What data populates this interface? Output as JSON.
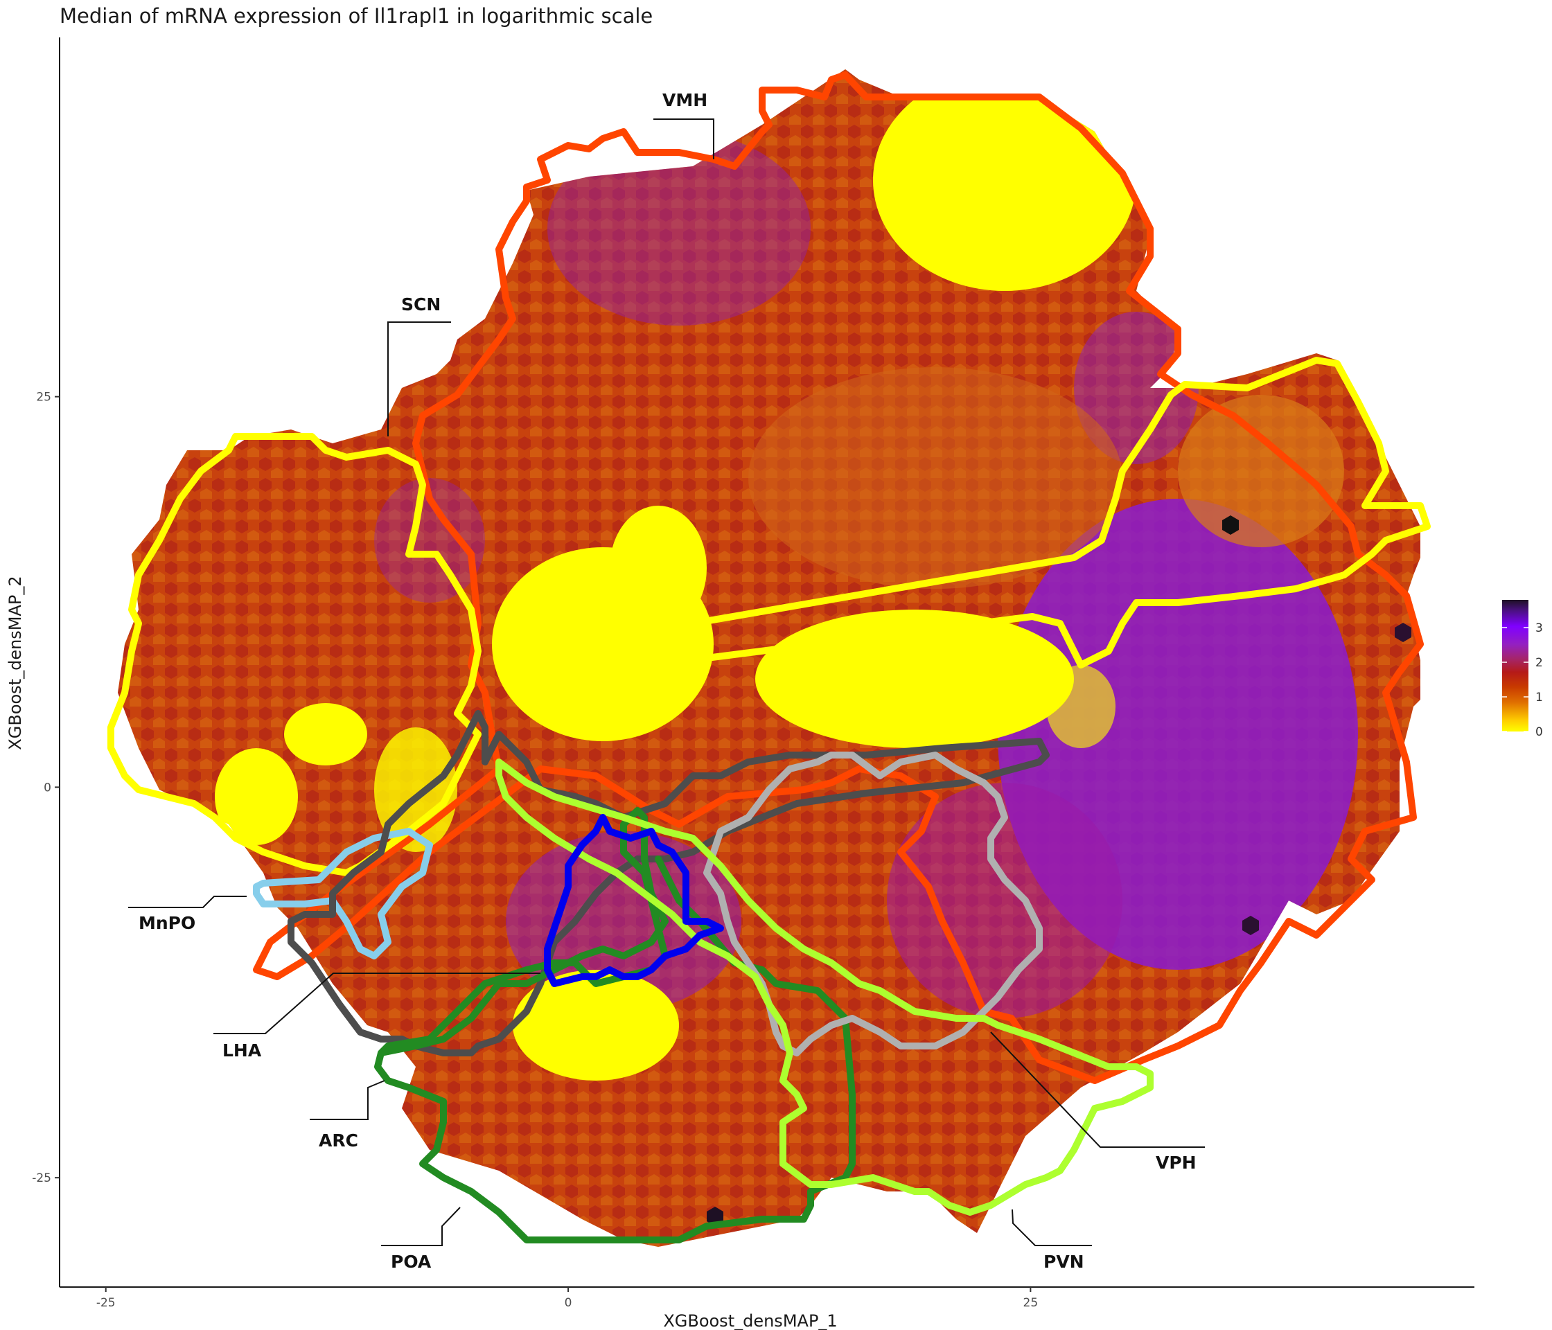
{
  "chart_data": {
    "type": "heatmap",
    "subtype": "hexbin",
    "title": "Median of mRNA expression of Il1rapl1 in logarithmic scale",
    "xlabel": "XGBoost_densMAP_1",
    "ylabel": "XGBoost_densMAP_2",
    "xlim": [
      -27.5,
      49
    ],
    "ylim": [
      -32,
      48
    ],
    "x_ticks": [
      -25,
      0,
      25
    ],
    "y_ticks": [
      -25,
      0,
      25
    ],
    "grid": false,
    "legend": {
      "placement": "right",
      "type": "colorbar",
      "range": [
        0,
        3.8
      ],
      "ticks": [
        0,
        1,
        2,
        3
      ],
      "colors": [
        "#ffff00",
        "#ffd400",
        "#e07a00",
        "#c83a00",
        "#b8140f",
        "#a52560",
        "#9420b8",
        "#8c00ff",
        "#5a10a0",
        "#1e1024"
      ]
    },
    "regions": [
      {
        "name": "VMH",
        "color": "#ff4500"
      },
      {
        "name": "SCN",
        "color": "#ffff00"
      },
      {
        "name": "MnPO",
        "color": "#87ceeb"
      },
      {
        "name": "LHA",
        "color": "#4d4d4d"
      },
      {
        "name": "ARC",
        "color": "#228b22"
      },
      {
        "name": "POA",
        "color": "#228b22"
      },
      {
        "name": "VPH",
        "color": "#b0b0b0"
      },
      {
        "name": "PVN",
        "color": "#adff2f"
      }
    ]
  }
}
